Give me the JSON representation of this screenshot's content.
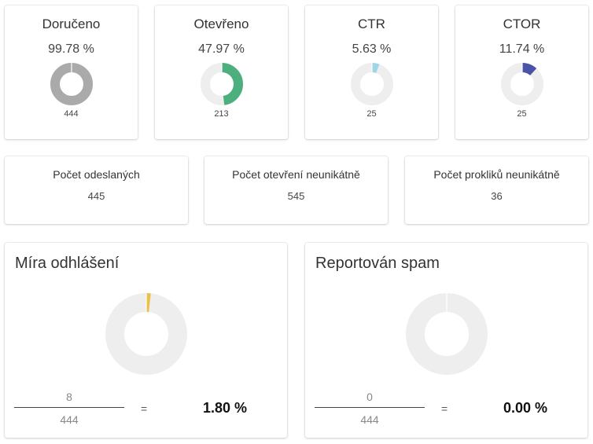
{
  "kpis": [
    {
      "title": "Doručeno",
      "value": "99.78 %",
      "count": "444",
      "fraction": 0.9978,
      "color": "#aaaaaa"
    },
    {
      "title": "Otevřeno",
      "value": "47.97 %",
      "count": "213",
      "fraction": 0.4797,
      "color": "#4caf7d"
    },
    {
      "title": "CTR",
      "value": "5.63 %",
      "count": "25",
      "fraction": 0.0563,
      "color": "#9fd6e6"
    },
    {
      "title": "CTOR",
      "value": "11.74 %",
      "count": "25",
      "fraction": 0.1174,
      "color": "#4a53a8"
    }
  ],
  "stats": [
    {
      "title": "Počet odeslaných",
      "value": "445"
    },
    {
      "title": "Počet otevření neunikátně",
      "value": "545"
    },
    {
      "title": "Počet prokliků neunikátně",
      "value": "36"
    }
  ],
  "rates": [
    {
      "title": "Míra odhlášení",
      "numerator": "8",
      "denominator": "444",
      "equals": "=",
      "result": "1.80 %",
      "fraction": 0.018,
      "color": "#e8c04a"
    },
    {
      "title": "Reportován spam",
      "numerator": "0",
      "denominator": "444",
      "equals": "=",
      "result": "0.00 %",
      "fraction": 0.0,
      "color": "#e0e0e0"
    }
  ],
  "colors": {
    "track": "#eeeeee"
  }
}
